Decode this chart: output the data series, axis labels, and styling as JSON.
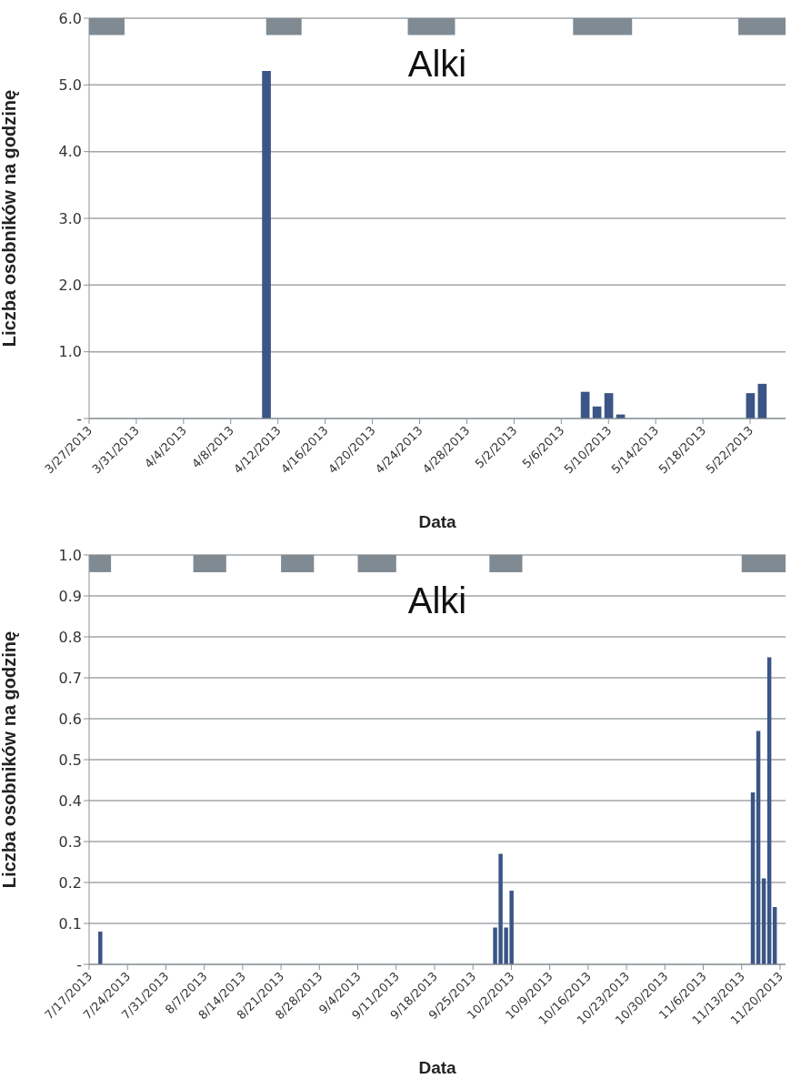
{
  "chart_data": [
    {
      "type": "bar",
      "title": "Alki",
      "xlabel": "Data",
      "ylabel": "Liczba osobników na godzinę",
      "x": [
        "2013-04-11",
        "2013-05-08",
        "2013-05-09",
        "2013-05-10",
        "2013-05-11",
        "2013-05-22",
        "2013-05-23"
      ],
      "values": [
        5.21,
        0.4,
        0.18,
        0.38,
        0.06,
        0.38,
        0.52
      ],
      "color": "#3b5586",
      "xlim": [
        "2013-03-27",
        "2013-05-25"
      ],
      "xticks": [
        {
          "value": "2013-03-27",
          "label": "3/27/2013"
        },
        {
          "value": "2013-03-31",
          "label": "3/31/2013"
        },
        {
          "value": "2013-04-04",
          "label": "4/4/2013"
        },
        {
          "value": "2013-04-08",
          "label": "4/8/2013"
        },
        {
          "value": "2013-04-12",
          "label": "4/12/2013"
        },
        {
          "value": "2013-04-16",
          "label": "4/16/2013"
        },
        {
          "value": "2013-04-20",
          "label": "4/20/2013"
        },
        {
          "value": "2013-04-24",
          "label": "4/24/2013"
        },
        {
          "value": "2013-04-28",
          "label": "4/28/2013"
        },
        {
          "value": "2013-05-02",
          "label": "5/2/2013"
        },
        {
          "value": "2013-05-06",
          "label": "5/6/2013"
        },
        {
          "value": "2013-05-10",
          "label": "5/10/2013"
        },
        {
          "value": "2013-05-14",
          "label": "5/14/2013"
        },
        {
          "value": "2013-05-18",
          "label": "5/18/2013"
        },
        {
          "value": "2013-05-22",
          "label": "5/22/2013"
        }
      ],
      "ylim": [
        0,
        6
      ],
      "yticks": [
        {
          "value": 0,
          "label": "-"
        },
        {
          "value": 1,
          "label": "1.0"
        },
        {
          "value": 2,
          "label": "2.0"
        },
        {
          "value": 3,
          "label": "3.0"
        },
        {
          "value": 4,
          "label": "4.0"
        },
        {
          "value": 5,
          "label": "5.0"
        },
        {
          "value": 6,
          "label": "6.0"
        }
      ],
      "grid": "y",
      "bands": [
        {
          "axis": "x",
          "from": "2013-03-27",
          "to": "2013-03-30",
          "color": "#808a93"
        },
        {
          "axis": "x",
          "from": "2013-04-11",
          "to": "2013-04-14",
          "color": "#808a93"
        },
        {
          "axis": "x",
          "from": "2013-04-23",
          "to": "2013-04-27",
          "color": "#808a93"
        },
        {
          "axis": "x",
          "from": "2013-05-07",
          "to": "2013-05-12",
          "color": "#808a93"
        },
        {
          "axis": "x",
          "from": "2013-05-21",
          "to": "2013-05-25",
          "color": "#808a93"
        }
      ]
    },
    {
      "type": "bar",
      "title": "Alki",
      "xlabel": "Data",
      "ylabel": "Liczba osobników na godzinę",
      "x": [
        "2013-07-19",
        "2013-09-29",
        "2013-09-30",
        "2013-10-01",
        "2013-10-02",
        "2013-11-15",
        "2013-11-16",
        "2013-11-17",
        "2013-11-18",
        "2013-11-19"
      ],
      "values": [
        0.08,
        0.09,
        0.27,
        0.09,
        0.18,
        0.42,
        0.57,
        0.21,
        0.75,
        0.14
      ],
      "color": "#3b5586",
      "xlim": [
        "2013-07-17",
        "2013-11-21"
      ],
      "xticks": [
        {
          "value": "2013-07-17",
          "label": "7/17/2013"
        },
        {
          "value": "2013-07-24",
          "label": "7/24/2013"
        },
        {
          "value": "2013-07-31",
          "label": "7/31/2013"
        },
        {
          "value": "2013-08-07",
          "label": "8/7/2013"
        },
        {
          "value": "2013-08-14",
          "label": "8/14/2013"
        },
        {
          "value": "2013-08-21",
          "label": "8/21/2013"
        },
        {
          "value": "2013-08-28",
          "label": "8/28/2013"
        },
        {
          "value": "2013-09-04",
          "label": "9/4/2013"
        },
        {
          "value": "2013-09-11",
          "label": "9/11/2013"
        },
        {
          "value": "2013-09-18",
          "label": "9/18/2013"
        },
        {
          "value": "2013-09-25",
          "label": "9/25/2013"
        },
        {
          "value": "2013-10-02",
          "label": "10/2/2013"
        },
        {
          "value": "2013-10-09",
          "label": "10/9/2013"
        },
        {
          "value": "2013-10-16",
          "label": "10/16/2013"
        },
        {
          "value": "2013-10-23",
          "label": "10/23/2013"
        },
        {
          "value": "2013-10-30",
          "label": "10/30/2013"
        },
        {
          "value": "2013-11-06",
          "label": "11/6/2013"
        },
        {
          "value": "2013-11-13",
          "label": "11/13/2013"
        },
        {
          "value": "2013-11-20",
          "label": "11/20/2013"
        }
      ],
      "ylim": [
        0,
        1
      ],
      "yticks": [
        {
          "value": 0,
          "label": "-"
        },
        0.1,
        0.2,
        0.3,
        0.4,
        0.5,
        0.6,
        0.7,
        0.8,
        0.9,
        {
          "value": 1,
          "label": "1.0"
        }
      ],
      "grid": "y",
      "bands": [
        {
          "axis": "x",
          "from": "2013-07-17",
          "to": "2013-07-21",
          "color": "#808a93"
        },
        {
          "axis": "x",
          "from": "2013-08-05",
          "to": "2013-08-11",
          "color": "#808a93"
        },
        {
          "axis": "x",
          "from": "2013-08-21",
          "to": "2013-08-27",
          "color": "#808a93"
        },
        {
          "axis": "x",
          "from": "2013-09-04",
          "to": "2013-09-11",
          "color": "#808a93"
        },
        {
          "axis": "x",
          "from": "2013-09-28",
          "to": "2013-10-04",
          "color": "#808a93"
        },
        {
          "axis": "x",
          "from": "2013-11-13",
          "to": "2013-11-21",
          "color": "#808a93"
        }
      ]
    }
  ]
}
